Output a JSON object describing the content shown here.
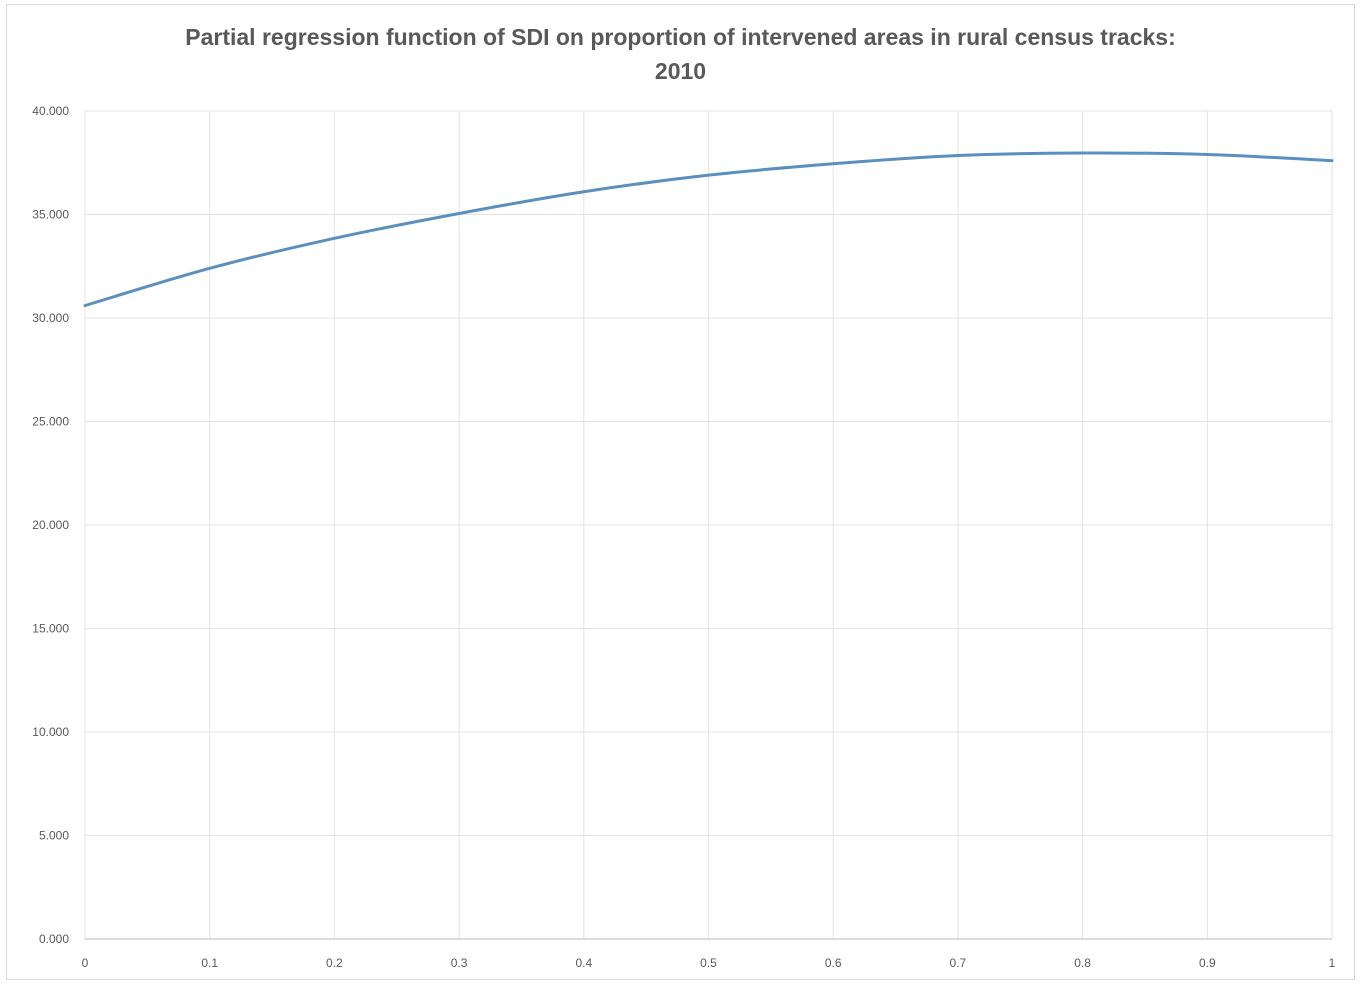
{
  "chart_data": {
    "type": "line",
    "title_line1": "Partial regression function of SDI on proportion of intervened areas in rural census tracks:",
    "title_line2": "2010",
    "xlabel": "",
    "ylabel": "",
    "xlim": [
      0,
      1
    ],
    "ylim": [
      0,
      40
    ],
    "x_ticks": [
      "0",
      "0.1",
      "0.2",
      "0.3",
      "0.4",
      "0.5",
      "0.6",
      "0.7",
      "0.8",
      "0.9",
      "1"
    ],
    "y_ticks": [
      "0.000",
      "5.000",
      "10.000",
      "15.000",
      "20.000",
      "25.000",
      "30.000",
      "35.000",
      "40.000"
    ],
    "grid": true,
    "legend": "none",
    "line_color": "#5b8fbf",
    "series": [
      {
        "x": [
          0,
          0.1,
          0.2,
          0.3,
          0.4,
          0.5,
          0.6,
          0.7,
          0.8,
          0.9,
          1
        ],
        "values": [
          30.6,
          32.4,
          33.85,
          35.05,
          36.1,
          36.9,
          37.45,
          37.85,
          37.97,
          37.9,
          37.6
        ]
      }
    ]
  }
}
